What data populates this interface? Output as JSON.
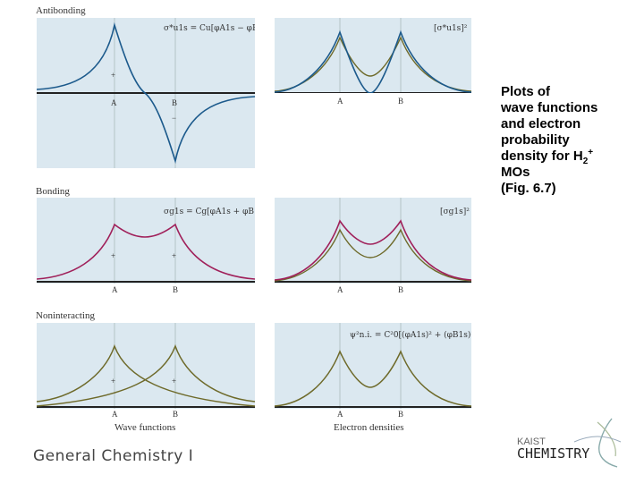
{
  "sections": {
    "antibonding": "Antibonding",
    "bonding": "Bonding",
    "noninteracting": "Noninteracting"
  },
  "panels": {
    "anti_wave": {
      "formula": "σ*u1s = Cu[φA1s − φB1s]",
      "labels": [
        "+",
        "−",
        "A",
        "B"
      ]
    },
    "anti_density": {
      "formula": "[σ*u1s]²",
      "labels": [
        "A",
        "B"
      ]
    },
    "bond_wave": {
      "formula": "σg1s = Cg[φA1s + φB1s]",
      "labels": [
        "+",
        "+",
        "A",
        "B"
      ]
    },
    "bond_density": {
      "formula": "[σg1s]²",
      "labels": [
        "A",
        "B"
      ]
    },
    "non_wave": {
      "labels": [
        "+",
        "+",
        "A",
        "B"
      ]
    },
    "non_density": {
      "formula": "ψ²n.i. = C²0[(φA1s)² + (φB1s)²]",
      "labels": [
        "A",
        "B"
      ]
    }
  },
  "column_captions": {
    "wave": "Wave functions",
    "density": "Electron densities"
  },
  "caption": {
    "line1": "Plots of",
    "line2": "wave functions",
    "line3": "and electron",
    "line4": "probability",
    "line5_pre": "density for H",
    "line5_sub": "2",
    "line5_sup": "+",
    "line6": "MOs",
    "line7": "(Fig. 6.7)"
  },
  "footer": "General Chemistry I",
  "logo": {
    "line1": "KAIST",
    "line2": "CHEMISTRY"
  },
  "colors": {
    "panel_bg": "#dbe8f0",
    "blue_curve": "#1c5a8c",
    "magenta_curve": "#a0205a",
    "olive_curve": "#6e6a2a"
  }
}
